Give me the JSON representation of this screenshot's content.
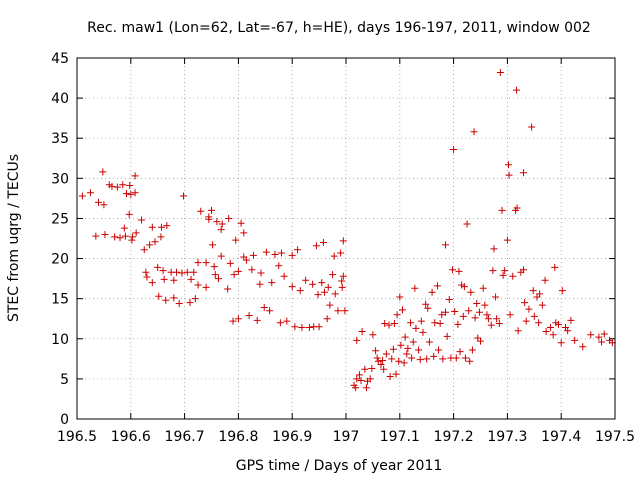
{
  "chart_data": {
    "type": "scatter",
    "title": "Rec. maw1 (Lon=62, Lat=-67, h=HE), days 196-197, 2011, window 002",
    "xlabel": "GPS time / Days of year 2011",
    "ylabel": "STEC from uqrg / TECUs",
    "xlim": [
      196.5,
      197.5
    ],
    "ylim": [
      0,
      45
    ],
    "xticks": [
      "196.5",
      "196.6",
      "196.7",
      "196.8",
      "196.9",
      "197",
      "197.1",
      "197.2",
      "197.3",
      "197.4",
      "197.5"
    ],
    "yticks": [
      "0",
      "5",
      "10",
      "15",
      "20",
      "25",
      "30",
      "35",
      "40",
      "45"
    ],
    "marker": "+",
    "color": "#cc0000",
    "grid": true,
    "series": [
      {
        "points": [
          [
            196.51,
            27.8
          ],
          [
            196.525,
            28.2
          ],
          [
            196.535,
            22.8
          ],
          [
            196.54,
            27.0
          ],
          [
            196.55,
            26.7
          ],
          [
            196.548,
            30.8
          ],
          [
            196.552,
            23.0
          ],
          [
            196.56,
            29.2
          ],
          [
            196.565,
            29.0
          ],
          [
            196.57,
            22.7
          ],
          [
            196.575,
            28.9
          ],
          [
            196.58,
            22.6
          ],
          [
            196.585,
            29.2
          ],
          [
            196.59,
            22.8
          ],
          [
            196.588,
            23.8
          ],
          [
            196.592,
            28.1
          ],
          [
            196.598,
            29.1
          ],
          [
            196.6,
            28.0
          ],
          [
            196.597,
            25.5
          ],
          [
            196.602,
            22.3
          ],
          [
            196.603,
            22.7
          ],
          [
            196.608,
            30.3
          ],
          [
            196.61,
            23.2
          ],
          [
            196.608,
            28.2
          ],
          [
            196.62,
            24.8
          ],
          [
            196.625,
            21.1
          ],
          [
            196.628,
            18.3
          ],
          [
            196.63,
            17.7
          ],
          [
            196.635,
            21.7
          ],
          [
            196.64,
            17.0
          ],
          [
            196.64,
            23.9
          ],
          [
            196.645,
            22.1
          ],
          [
            196.65,
            18.9
          ],
          [
            196.652,
            15.3
          ],
          [
            196.656,
            22.7
          ],
          [
            196.657,
            23.9
          ],
          [
            196.66,
            18.5
          ],
          [
            196.662,
            17.4
          ],
          [
            196.665,
            14.8
          ],
          [
            196.667,
            24.1
          ],
          [
            196.675,
            18.3
          ],
          [
            196.68,
            15.1
          ],
          [
            196.68,
            17.3
          ],
          [
            196.685,
            18.3
          ],
          [
            196.69,
            14.4
          ],
          [
            196.695,
            18.2
          ],
          [
            196.698,
            27.8
          ],
          [
            196.705,
            18.3
          ],
          [
            196.71,
            14.5
          ],
          [
            196.712,
            17.4
          ],
          [
            196.717,
            18.3
          ],
          [
            196.72,
            15.0
          ],
          [
            196.725,
            16.7
          ],
          [
            196.725,
            19.5
          ],
          [
            196.73,
            25.9
          ],
          [
            196.74,
            16.4
          ],
          [
            196.74,
            19.5
          ],
          [
            196.745,
            24.9
          ],
          [
            196.745,
            25.2
          ],
          [
            196.75,
            26.0
          ],
          [
            196.752,
            21.7
          ],
          [
            196.755,
            19.0
          ],
          [
            196.757,
            18.0
          ],
          [
            196.76,
            24.6
          ],
          [
            196.763,
            17.5
          ],
          [
            196.768,
            20.3
          ],
          [
            196.768,
            23.6
          ],
          [
            196.77,
            24.3
          ],
          [
            196.78,
            16.2
          ],
          [
            196.782,
            25.0
          ],
          [
            196.785,
            19.4
          ],
          [
            196.79,
            12.2
          ],
          [
            196.792,
            18.0
          ],
          [
            196.795,
            22.3
          ],
          [
            196.8,
            12.5
          ],
          [
            196.8,
            18.4
          ],
          [
            196.805,
            24.4
          ],
          [
            196.81,
            23.2
          ],
          [
            196.81,
            20.2
          ],
          [
            196.815,
            19.8
          ],
          [
            196.82,
            12.9
          ],
          [
            196.825,
            18.6
          ],
          [
            196.828,
            20.4
          ],
          [
            196.835,
            12.3
          ],
          [
            196.84,
            16.8
          ],
          [
            196.842,
            18.2
          ],
          [
            196.848,
            13.9
          ],
          [
            196.852,
            20.8
          ],
          [
            196.858,
            13.5
          ],
          [
            196.862,
            17.0
          ],
          [
            196.868,
            20.5
          ],
          [
            196.875,
            19.1
          ],
          [
            196.878,
            12.0
          ],
          [
            196.88,
            20.7
          ],
          [
            196.885,
            17.8
          ],
          [
            196.89,
            12.2
          ],
          [
            196.9,
            16.5
          ],
          [
            196.9,
            20.4
          ],
          [
            196.905,
            11.5
          ],
          [
            196.91,
            21.1
          ],
          [
            196.915,
            16.0
          ],
          [
            196.918,
            11.4
          ],
          [
            196.925,
            17.3
          ],
          [
            196.932,
            11.4
          ],
          [
            196.938,
            16.8
          ],
          [
            196.94,
            11.5
          ],
          [
            196.945,
            21.6
          ],
          [
            196.948,
            15.5
          ],
          [
            196.95,
            11.5
          ],
          [
            196.955,
            17.0
          ],
          [
            196.958,
            22.0
          ],
          [
            196.965,
            12.5
          ],
          [
            196.96,
            15.8
          ],
          [
            196.967,
            16.4
          ],
          [
            196.97,
            14.2
          ],
          [
            196.975,
            18.0
          ],
          [
            196.978,
            20.3
          ],
          [
            196.98,
            15.6
          ],
          [
            196.985,
            13.5
          ],
          [
            196.99,
            20.7
          ],
          [
            196.992,
            17.2
          ],
          [
            196.993,
            16.4
          ],
          [
            196.995,
            22.2
          ],
          [
            196.995,
            17.8
          ],
          [
            196.998,
            13.5
          ],
          [
            197.015,
            4.2
          ],
          [
            197.018,
            3.9
          ],
          [
            197.02,
            9.8
          ],
          [
            197.02,
            5.0
          ],
          [
            197.025,
            5.5
          ],
          [
            197.028,
            4.8
          ],
          [
            197.03,
            10.9
          ],
          [
            197.035,
            6.2
          ],
          [
            197.038,
            3.9
          ],
          [
            197.04,
            4.7
          ],
          [
            197.045,
            5.0
          ],
          [
            197.048,
            6.3
          ],
          [
            197.05,
            10.5
          ],
          [
            197.055,
            8.5
          ],
          [
            197.058,
            7.6
          ],
          [
            197.06,
            7.2
          ],
          [
            197.065,
            6.8
          ],
          [
            197.068,
            7.3
          ],
          [
            197.07,
            6.2
          ],
          [
            197.072,
            11.9
          ],
          [
            197.075,
            8.1
          ],
          [
            197.08,
            11.7
          ],
          [
            197.082,
            5.3
          ],
          [
            197.085,
            7.5
          ],
          [
            197.088,
            8.7
          ],
          [
            197.09,
            11.9
          ],
          [
            197.093,
            5.6
          ],
          [
            197.095,
            13.0
          ],
          [
            197.098,
            7.2
          ],
          [
            197.1,
            15.2
          ],
          [
            197.102,
            9.2
          ],
          [
            197.105,
            13.6
          ],
          [
            197.108,
            7.0
          ],
          [
            197.11,
            10.2
          ],
          [
            197.113,
            8.1
          ],
          [
            197.115,
            8.8
          ],
          [
            197.12,
            12.0
          ],
          [
            197.122,
            7.6
          ],
          [
            197.125,
            9.6
          ],
          [
            197.128,
            16.3
          ],
          [
            197.13,
            11.3
          ],
          [
            197.135,
            8.6
          ],
          [
            197.138,
            7.4
          ],
          [
            197.14,
            12.2
          ],
          [
            197.143,
            10.8
          ],
          [
            197.148,
            14.3
          ],
          [
            197.15,
            7.5
          ],
          [
            197.152,
            13.8
          ],
          [
            197.155,
            9.6
          ],
          [
            197.16,
            15.8
          ],
          [
            197.163,
            7.8
          ],
          [
            197.165,
            12.0
          ],
          [
            197.17,
            16.6
          ],
          [
            197.172,
            8.6
          ],
          [
            197.175,
            11.9
          ],
          [
            197.178,
            13.0
          ],
          [
            197.18,
            7.5
          ],
          [
            197.185,
            21.7
          ],
          [
            197.185,
            13.3
          ],
          [
            197.188,
            10.3
          ],
          [
            197.192,
            14.9
          ],
          [
            197.195,
            7.6
          ],
          [
            197.198,
            18.6
          ],
          [
            197.2,
            33.6
          ],
          [
            197.202,
            13.4
          ],
          [
            197.205,
            7.6
          ],
          [
            197.208,
            11.8
          ],
          [
            197.21,
            18.4
          ],
          [
            197.212,
            8.4
          ],
          [
            197.215,
            16.7
          ],
          [
            197.218,
            12.8
          ],
          [
            197.22,
            16.5
          ],
          [
            197.222,
            7.6
          ],
          [
            197.225,
            24.3
          ],
          [
            197.228,
            13.5
          ],
          [
            197.23,
            7.2
          ],
          [
            197.232,
            15.8
          ],
          [
            197.235,
            8.6
          ],
          [
            197.238,
            35.8
          ],
          [
            197.24,
            12.6
          ],
          [
            197.243,
            14.4
          ],
          [
            197.245,
            10.1
          ],
          [
            197.248,
            13.3
          ],
          [
            197.25,
            9.7
          ],
          [
            197.255,
            16.3
          ],
          [
            197.258,
            14.2
          ],
          [
            197.262,
            13.0
          ],
          [
            197.265,
            12.5
          ],
          [
            197.27,
            11.7
          ],
          [
            197.273,
            18.5
          ],
          [
            197.275,
            21.2
          ],
          [
            197.278,
            15.2
          ],
          [
            197.28,
            12.5
          ],
          [
            197.285,
            11.9
          ],
          [
            197.287,
            43.2
          ],
          [
            197.29,
            26.0
          ],
          [
            197.292,
            17.9
          ],
          [
            197.295,
            18.5
          ],
          [
            197.3,
            22.3
          ],
          [
            197.302,
            31.7
          ],
          [
            197.303,
            30.4
          ],
          [
            197.305,
            13.0
          ],
          [
            197.31,
            17.8
          ],
          [
            197.315,
            26.0
          ],
          [
            197.317,
            41.0
          ],
          [
            197.318,
            26.3
          ],
          [
            197.32,
            11.0
          ],
          [
            197.325,
            18.3
          ],
          [
            197.33,
            30.7
          ],
          [
            197.33,
            18.6
          ],
          [
            197.332,
            14.5
          ],
          [
            197.335,
            12.2
          ],
          [
            197.34,
            13.7
          ],
          [
            197.345,
            36.4
          ],
          [
            197.348,
            16.0
          ],
          [
            197.35,
            12.8
          ],
          [
            197.355,
            15.2
          ],
          [
            197.358,
            12.0
          ],
          [
            197.36,
            15.6
          ],
          [
            197.365,
            14.2
          ],
          [
            197.37,
            17.3
          ],
          [
            197.372,
            10.9
          ],
          [
            197.38,
            11.4
          ],
          [
            197.385,
            10.5
          ],
          [
            197.388,
            18.9
          ],
          [
            197.39,
            12.0
          ],
          [
            197.395,
            11.8
          ],
          [
            197.4,
            9.5
          ],
          [
            197.402,
            16.0
          ],
          [
            197.408,
            11.4
          ],
          [
            197.412,
            11.0
          ],
          [
            197.418,
            12.3
          ],
          [
            197.425,
            9.8
          ],
          [
            197.44,
            9.0
          ],
          [
            197.455,
            10.5
          ],
          [
            197.47,
            10.2
          ],
          [
            197.475,
            9.6
          ],
          [
            197.48,
            10.6
          ],
          [
            197.49,
            9.8
          ],
          [
            197.495,
            9.5
          ]
        ]
      }
    ]
  }
}
